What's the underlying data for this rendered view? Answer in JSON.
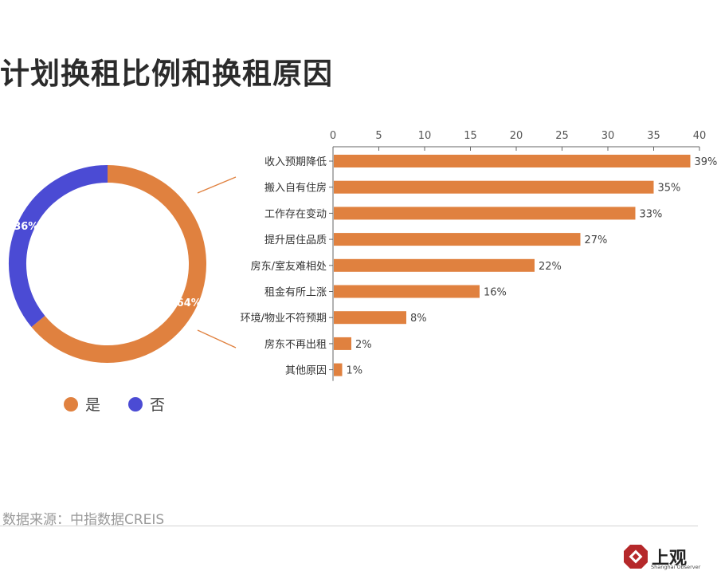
{
  "title": "计划换租比例和换租原因",
  "source": "数据来源：中指数据CREIS",
  "brand": {
    "name": "上观",
    "sub": "Shanghai Observer"
  },
  "colors": {
    "yes": "#e0813f",
    "no": "#4b4bd4",
    "bar": "#e0813f"
  },
  "chart_data": [
    {
      "type": "pie",
      "donut": true,
      "categories": [
        "是",
        "否"
      ],
      "values": [
        64,
        36
      ],
      "value_labels": [
        "64%",
        "36%"
      ],
      "legend": [
        "是",
        "否"
      ],
      "legend_position": "bottom"
    },
    {
      "type": "bar",
      "orientation": "horizontal",
      "categories": [
        "收入预期降低",
        "搬入自有住房",
        "工作存在变动",
        "提升居住品质",
        "房东/室友难相处",
        "租金有所上涨",
        "环境/物业不符预期",
        "房东不再出租",
        "其他原因"
      ],
      "values": [
        39,
        35,
        33,
        27,
        22,
        16,
        8,
        2,
        1
      ],
      "value_labels": [
        "39%",
        "35%",
        "33%",
        "27%",
        "22%",
        "16%",
        "8%",
        "2%",
        "1%"
      ],
      "xlim": [
        0,
        40
      ],
      "x_ticks": [
        "0",
        "5",
        "10",
        "15",
        "20",
        "25",
        "30",
        "35",
        "40"
      ],
      "axis_position": "top"
    }
  ]
}
